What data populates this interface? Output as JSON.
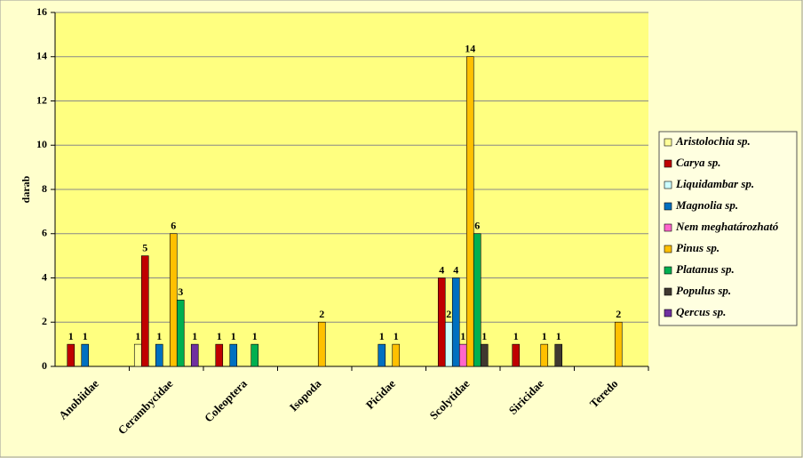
{
  "chart_data": {
    "type": "bar",
    "ylabel": "darab",
    "categories": [
      "Anobiidae",
      "Cerambycidae",
      "Coleoptera",
      "Isopoda",
      "Picidae",
      "Scolytidae",
      "Siricidae",
      "Teredo"
    ],
    "series": [
      {
        "name": "Aristolochia sp.",
        "color": "#ffff99",
        "values": [
          null,
          1,
          null,
          null,
          null,
          null,
          null,
          null
        ]
      },
      {
        "name": "Carya sp.",
        "color": "#c00000",
        "values": [
          1,
          5,
          1,
          null,
          null,
          4,
          1,
          null
        ]
      },
      {
        "name": "Liquidambar sp.",
        "color": "#ccffff",
        "values": [
          null,
          null,
          null,
          null,
          null,
          2,
          null,
          null
        ]
      },
      {
        "name": "Magnolia sp.",
        "color": "#0070c0",
        "values": [
          1,
          1,
          1,
          null,
          1,
          4,
          null,
          null
        ]
      },
      {
        "name": "Nem meghatározható",
        "color": "#ff66cc",
        "values": [
          null,
          null,
          null,
          null,
          null,
          1,
          null,
          null
        ]
      },
      {
        "name": "Pinus sp.",
        "color": "#ffc000",
        "values": [
          null,
          6,
          null,
          2,
          1,
          14,
          1,
          2
        ]
      },
      {
        "name": "Platanus sp.",
        "color": "#00b050",
        "values": [
          null,
          3,
          1,
          null,
          null,
          6,
          null,
          null
        ]
      },
      {
        "name": "Populus sp.",
        "color": "#403830",
        "values": [
          null,
          null,
          null,
          null,
          null,
          1,
          1,
          null
        ]
      },
      {
        "name": "Qercus sp.",
        "color": "#7030a0",
        "values": [
          null,
          1,
          null,
          null,
          null,
          null,
          null,
          null
        ]
      }
    ],
    "ylim": [
      0,
      16
    ],
    "yticks": [
      0,
      2,
      4,
      6,
      8,
      10,
      12,
      14,
      16
    ],
    "grid": true,
    "legend": "right",
    "data_labels": true
  }
}
